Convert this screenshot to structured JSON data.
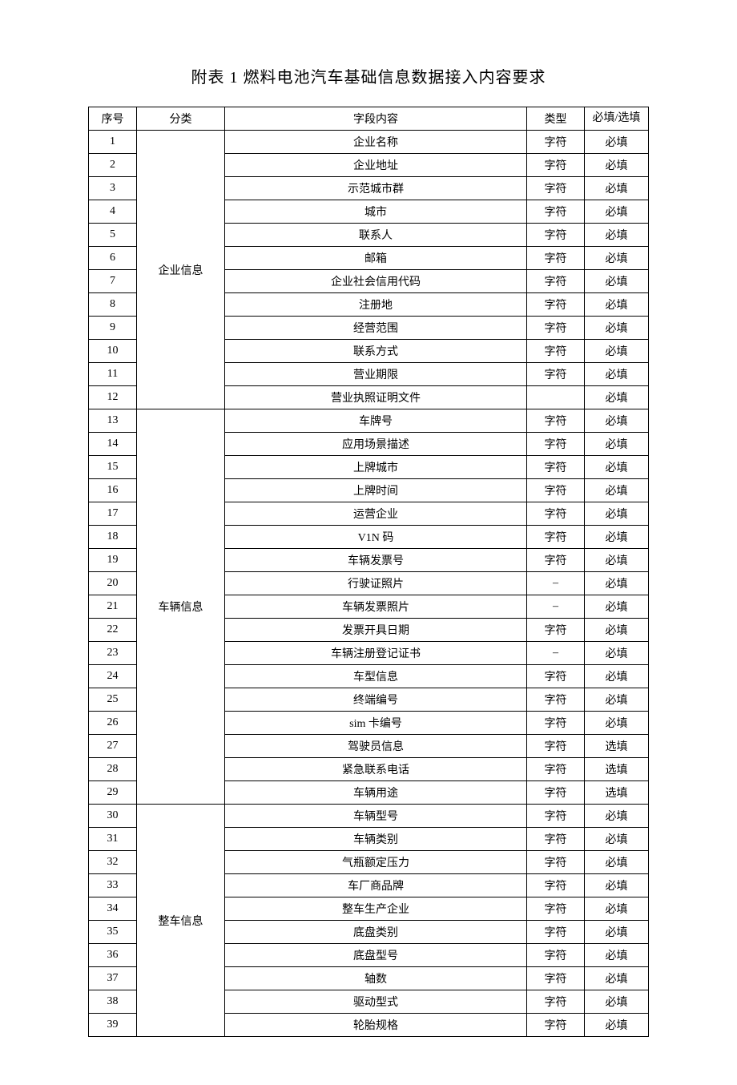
{
  "title": "附表 1 燃料电池汽车基础信息数据接入内容要求",
  "table": {
    "headers": {
      "seq": "序号",
      "category": "分类",
      "field": "字段内容",
      "type": "类型",
      "required": "必填/选填"
    },
    "categories": [
      {
        "name": "企业信息",
        "span": 12,
        "startSeq": 1
      },
      {
        "name": "车辆信息",
        "span": 17,
        "startSeq": 13
      },
      {
        "name": "整车信息",
        "span": 10,
        "startSeq": 30
      }
    ],
    "rows": [
      {
        "seq": 1,
        "field": "企业名称",
        "type": "字符",
        "required": "必填"
      },
      {
        "seq": 2,
        "field": "企业地址",
        "type": "字符",
        "required": "必填"
      },
      {
        "seq": 3,
        "field": "示范城市群",
        "type": "字符",
        "required": "必填"
      },
      {
        "seq": 4,
        "field": "城市",
        "type": "字符",
        "required": "必填"
      },
      {
        "seq": 5,
        "field": "联系人",
        "type": "字符",
        "required": "必填"
      },
      {
        "seq": 6,
        "field": "邮箱",
        "type": "字符",
        "required": "必填"
      },
      {
        "seq": 7,
        "field": "企业社会信用代码",
        "type": "字符",
        "required": "必填"
      },
      {
        "seq": 8,
        "field": "注册地",
        "type": "字符",
        "required": "必填"
      },
      {
        "seq": 9,
        "field": "经营范围",
        "type": "字符",
        "required": "必填"
      },
      {
        "seq": 10,
        "field": "联系方式",
        "type": "字符",
        "required": "必填"
      },
      {
        "seq": 11,
        "field": "营业期限",
        "type": "字符",
        "required": "必填"
      },
      {
        "seq": 12,
        "field": "营业执照证明文件",
        "type": "",
        "required": "必填"
      },
      {
        "seq": 13,
        "field": "车牌号",
        "type": "字符",
        "required": "必填"
      },
      {
        "seq": 14,
        "field": "应用场景描述",
        "type": "字符",
        "required": "必填"
      },
      {
        "seq": 15,
        "field": "上牌城市",
        "type": "字符",
        "required": "必填"
      },
      {
        "seq": 16,
        "field": "上牌时间",
        "type": "字符",
        "required": "必填"
      },
      {
        "seq": 17,
        "field": "运营企业",
        "type": "字符",
        "required": "必填"
      },
      {
        "seq": 18,
        "field": "V1N 码",
        "type": "字符",
        "required": "必填"
      },
      {
        "seq": 19,
        "field": "车辆发票号",
        "type": "字符",
        "required": "必填"
      },
      {
        "seq": 20,
        "field": "行驶证照片",
        "type": "–",
        "required": "必填"
      },
      {
        "seq": 21,
        "field": "车辆发票照片",
        "type": "–",
        "required": "必填"
      },
      {
        "seq": 22,
        "field": "发票开具日期",
        "type": "字符",
        "required": "必填"
      },
      {
        "seq": 23,
        "field": "车辆注册登记证书",
        "type": "–",
        "required": "必填"
      },
      {
        "seq": 24,
        "field": "车型信息",
        "type": "字符",
        "required": "必填"
      },
      {
        "seq": 25,
        "field": "终端编号",
        "type": "字符",
        "required": "必填"
      },
      {
        "seq": 26,
        "field": "sim 卡编号",
        "type": "字符",
        "required": "必填"
      },
      {
        "seq": 27,
        "field": "驾驶员信息",
        "type": "字符",
        "required": "选填"
      },
      {
        "seq": 28,
        "field": "紧急联系电话",
        "type": "字符",
        "required": "选填"
      },
      {
        "seq": 29,
        "field": "车辆用途",
        "type": "字符",
        "required": "选填"
      },
      {
        "seq": 30,
        "field": "车辆型号",
        "type": "字符",
        "required": "必填"
      },
      {
        "seq": 31,
        "field": "车辆类别",
        "type": "字符",
        "required": "必填"
      },
      {
        "seq": 32,
        "field": "气瓶额定压力",
        "type": "字符",
        "required": "必填"
      },
      {
        "seq": 33,
        "field": "车厂商品牌",
        "type": "字符",
        "required": "必填"
      },
      {
        "seq": 34,
        "field": "整车生产企业",
        "type": "字符",
        "required": "必填"
      },
      {
        "seq": 35,
        "field": "底盘类别",
        "type": "字符",
        "required": "必填"
      },
      {
        "seq": 36,
        "field": "底盘型号",
        "type": "字符",
        "required": "必填"
      },
      {
        "seq": 37,
        "field": "轴数",
        "type": "字符",
        "required": "必填"
      },
      {
        "seq": 38,
        "field": "驱动型式",
        "type": "字符",
        "required": "必填"
      },
      {
        "seq": 39,
        "field": "轮胎规格",
        "type": "字符",
        "required": "必填"
      }
    ]
  }
}
